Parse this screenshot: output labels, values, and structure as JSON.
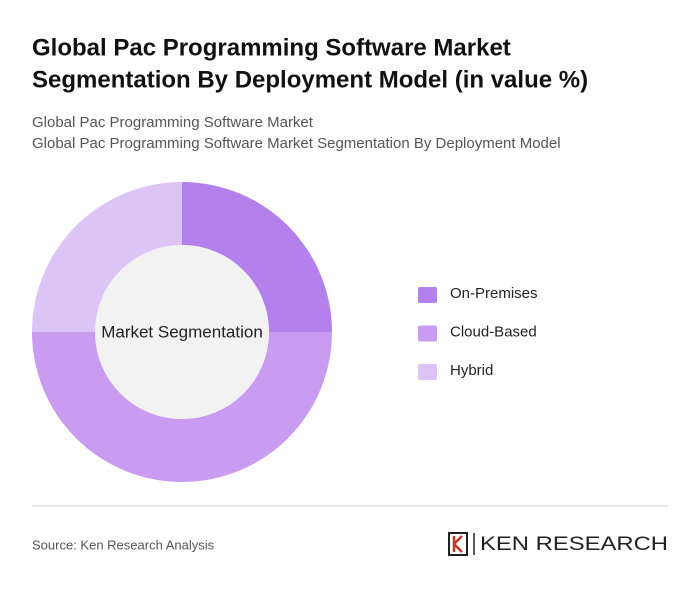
{
  "chart_data": {
    "type": "pie",
    "title": [
      "Global Pac Programming Software Market",
      "Segmentation By Deployment Model (in value %)"
    ],
    "subtitle": [
      "Global Pac Programming Software Market",
      "Global Pac Programming Software Market Segmentation By Deployment Model"
    ],
    "center_label": "Market Segmentation",
    "categories": [
      "On-Premises",
      "Cloud-Based",
      "Hybrid"
    ],
    "values": [
      25,
      50,
      25
    ],
    "colors": [
      "#b380ec",
      "#c99cf1",
      "#dcc4f7"
    ],
    "source": "Source: Ken Research Analysis",
    "brand": "KEN RESEARCH"
  }
}
